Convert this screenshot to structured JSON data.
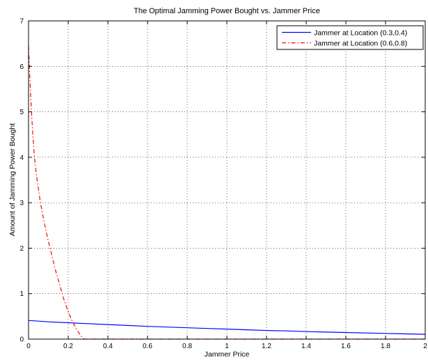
{
  "chart_data": {
    "type": "line",
    "title": "The Optimal Jamming Power Bought vs. Jammer Price",
    "xlabel": "Jammer Price",
    "ylabel": "Amount of Jamming Power Bought",
    "xlim": [
      0,
      2
    ],
    "ylim": [
      0,
      7
    ],
    "xticks": [
      0,
      0.2,
      0.4,
      0.6,
      0.8,
      1,
      1.2,
      1.4,
      1.6,
      1.8,
      2
    ],
    "xtick_labels": [
      "0",
      "0.2",
      "0.4",
      "0.6",
      "0.8",
      "1",
      "1.2",
      "1.4",
      "1.6",
      "1.8",
      "2"
    ],
    "yticks": [
      0,
      1,
      2,
      3,
      4,
      5,
      6,
      7
    ],
    "ytick_labels": [
      "0",
      "1",
      "2",
      "3",
      "4",
      "5",
      "6",
      "7"
    ],
    "grid": true,
    "legend_position": "top-right",
    "series": [
      {
        "name": "Jammer at Location (0.3,0.4)",
        "color": "#0000ff",
        "style": "solid",
        "x": [
          0,
          0.1,
          0.2,
          0.3,
          0.4,
          0.5,
          0.6,
          0.7,
          0.8,
          0.9,
          1.0,
          1.1,
          1.2,
          1.3,
          1.4,
          1.5,
          1.6,
          1.7,
          1.8,
          1.9,
          2.0
        ],
        "y": [
          0.41,
          0.38,
          0.36,
          0.34,
          0.32,
          0.3,
          0.28,
          0.265,
          0.25,
          0.235,
          0.22,
          0.205,
          0.19,
          0.18,
          0.165,
          0.155,
          0.145,
          0.135,
          0.125,
          0.115,
          0.105
        ]
      },
      {
        "name": "Jammer at Location (0.6,0.8)",
        "color": "#ff0000",
        "style": "dashdot",
        "x": [
          0.0,
          0.01,
          0.02,
          0.03,
          0.04,
          0.05,
          0.06,
          0.08,
          0.1,
          0.12,
          0.14,
          0.16,
          0.18,
          0.2,
          0.22,
          0.24,
          0.26,
          0.27,
          0.28,
          0.3,
          0.5,
          1.0,
          1.5,
          2.0
        ],
        "y": [
          6.45,
          5.4,
          4.6,
          4.0,
          3.6,
          3.3,
          3.0,
          2.55,
          2.15,
          1.8,
          1.45,
          1.15,
          0.85,
          0.6,
          0.4,
          0.23,
          0.1,
          0.04,
          0.0,
          0.0,
          0.0,
          0.0,
          0.0,
          0.0
        ]
      }
    ]
  }
}
